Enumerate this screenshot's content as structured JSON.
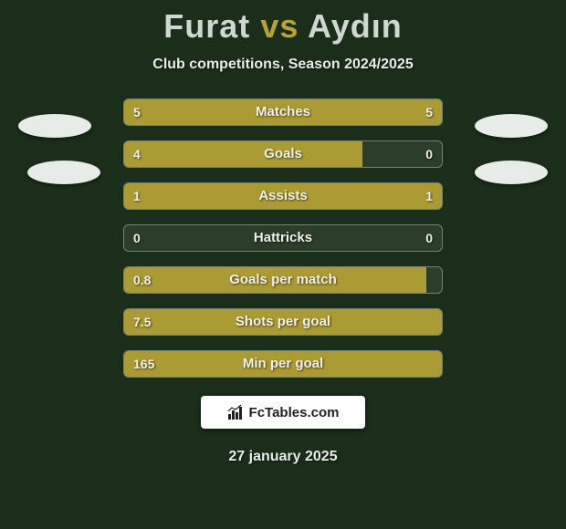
{
  "title": {
    "player1": "Furat",
    "vs": "vs",
    "player2": "Aydın"
  },
  "subtitle": "Club competitions, Season 2024/2025",
  "colors": {
    "bar_fill": "#aa9b34",
    "bar_bg": "#2a3e2a",
    "page_bg": "#1a2e1a",
    "text": "#f0f0e8",
    "badge": "#e8ece8"
  },
  "stats": [
    {
      "label": "Matches",
      "left_val": "5",
      "right_val": "5",
      "left_pct": 50,
      "right_pct": 50
    },
    {
      "label": "Goals",
      "left_val": "4",
      "right_val": "0",
      "left_pct": 75,
      "right_pct": 0
    },
    {
      "label": "Assists",
      "left_val": "1",
      "right_val": "1",
      "left_pct": 50,
      "right_pct": 50
    },
    {
      "label": "Hattricks",
      "left_val": "0",
      "right_val": "0",
      "left_pct": 0,
      "right_pct": 0
    },
    {
      "label": "Goals per match",
      "left_val": "0.8",
      "right_val": "",
      "left_pct": 95,
      "right_pct": 0
    },
    {
      "label": "Shots per goal",
      "left_val": "7.5",
      "right_val": "",
      "left_pct": 100,
      "right_pct": 0
    },
    {
      "label": "Min per goal",
      "left_val": "165",
      "right_val": "",
      "left_pct": 100,
      "right_pct": 0
    }
  ],
  "attribution": "FcTables.com",
  "date": "27 january 2025"
}
